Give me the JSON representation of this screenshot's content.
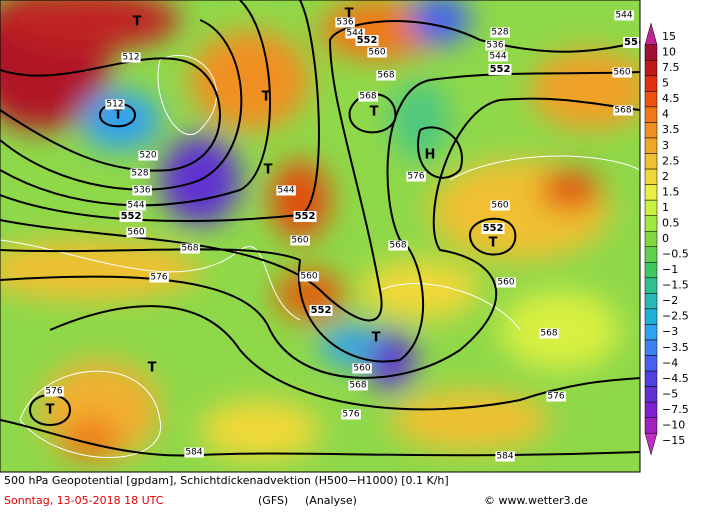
{
  "map": {
    "markers": [
      "T",
      "T",
      "T",
      "T",
      "T",
      "T",
      "T",
      "T",
      "T",
      "T",
      "H"
    ],
    "contour_labels": [
      "512",
      "512",
      "520",
      "528",
      "536",
      "544",
      "552",
      "560",
      "568",
      "576",
      "536",
      "544",
      "552",
      "560",
      "568",
      "568",
      "528",
      "536",
      "544",
      "552",
      "560",
      "568",
      "576",
      "560",
      "552",
      "560",
      "568",
      "560",
      "544",
      "552",
      "560",
      "552",
      "560",
      "568",
      "576",
      "576",
      "584",
      "584",
      "576",
      "568",
      "544",
      "55"
    ]
  },
  "colorbar": {
    "labels": [
      "15",
      "10",
      "7.5",
      "5",
      "4.5",
      "4",
      "3.5",
      "3",
      "2.5",
      "2",
      "1.5",
      "1",
      "0.5",
      "0",
      "−0.5",
      "−1",
      "−1.5",
      "−2",
      "−2.5",
      "−3",
      "−3.5",
      "−4",
      "−4.5",
      "−5",
      "−7.5",
      "−10",
      "−15"
    ],
    "colors": [
      "#c02890",
      "#a01030",
      "#c01818",
      "#e03010",
      "#f05010",
      "#f07818",
      "#f09020",
      "#f0a828",
      "#f0c030",
      "#f0d838",
      "#e8f040",
      "#c8f040",
      "#a0e840",
      "#80d840",
      "#60d050",
      "#40c860",
      "#30c090",
      "#28b8b8",
      "#20b0d8",
      "#30a0f0",
      "#4080f0",
      "#4860f0",
      "#5040e0",
      "#6030d0",
      "#8020d0",
      "#a020c0",
      "#c030c0"
    ]
  },
  "footer": {
    "title": "500 hPa Geopotential [gpdam], Schichtdickenadvektion (H500−H1000) [0.1 K/h]",
    "date": "Sonntag, 13-05-2018  18 UTC",
    "model": "(GFS)",
    "run": "(Analyse)",
    "credit": "© www.wetter3.de"
  }
}
